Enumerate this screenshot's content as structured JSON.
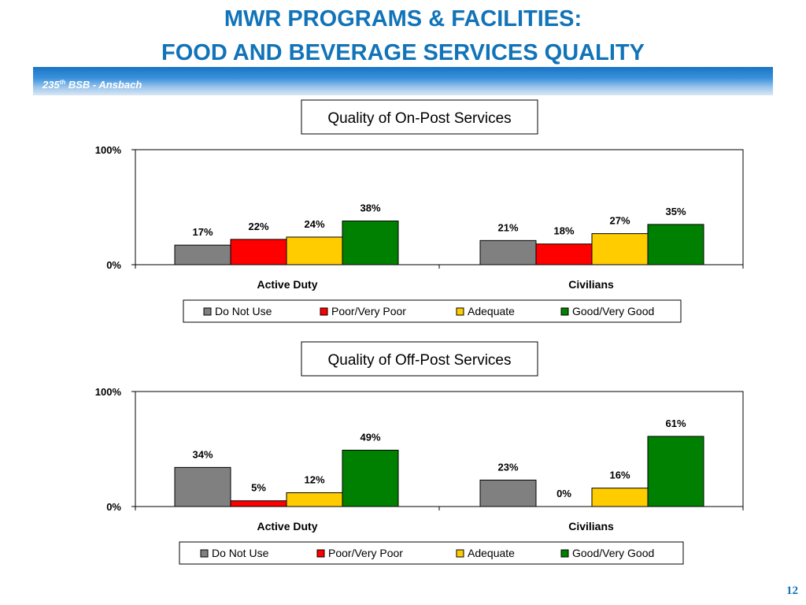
{
  "header": {
    "title_line1": "MWR PROGRAMS & FACILITIES:",
    "title_line2": "FOOD AND BEVERAGE SERVICES QUALITY",
    "unit_prefix": "235",
    "unit_sup": "th",
    "unit_suffix": " BSB - Ansbach"
  },
  "footer": {
    "page_number": "12"
  },
  "colors": {
    "title": "#1173b8",
    "do_not_use": "#808080",
    "poor": "#ff0000",
    "adequate": "#ffcc00",
    "good": "#008000"
  },
  "chart_data": [
    {
      "type": "bar",
      "title": "Quality of On-Post Services",
      "categories": [
        "Active Duty",
        "Civilians"
      ],
      "series": [
        {
          "name": "Do Not Use",
          "color": "#808080",
          "values": [
            17,
            21
          ]
        },
        {
          "name": "Poor/Very Poor",
          "color": "#ff0000",
          "values": [
            22,
            18
          ]
        },
        {
          "name": "Adequate",
          "color": "#ffcc00",
          "values": [
            24,
            27
          ]
        },
        {
          "name": "Good/Very Good",
          "color": "#008000",
          "values": [
            38,
            35
          ]
        }
      ],
      "ylim": [
        0,
        100
      ],
      "yticks": [
        "0%",
        "100%"
      ],
      "value_suffix": "%",
      "legend": "bottom",
      "grid": false
    },
    {
      "type": "bar",
      "title": "Quality of Off-Post Services",
      "categories": [
        "Active Duty",
        "Civilians"
      ],
      "series": [
        {
          "name": "Do Not Use",
          "color": "#808080",
          "values": [
            34,
            23
          ]
        },
        {
          "name": "Poor/Very Poor",
          "color": "#ff0000",
          "values": [
            5,
            0
          ]
        },
        {
          "name": "Adequate",
          "color": "#ffcc00",
          "values": [
            12,
            16
          ]
        },
        {
          "name": "Good/Very Good",
          "color": "#008000",
          "values": [
            49,
            61
          ]
        }
      ],
      "ylim": [
        0,
        100
      ],
      "yticks": [
        "0%",
        "100%"
      ],
      "value_suffix": "%",
      "legend": "bottom",
      "grid": false
    }
  ]
}
